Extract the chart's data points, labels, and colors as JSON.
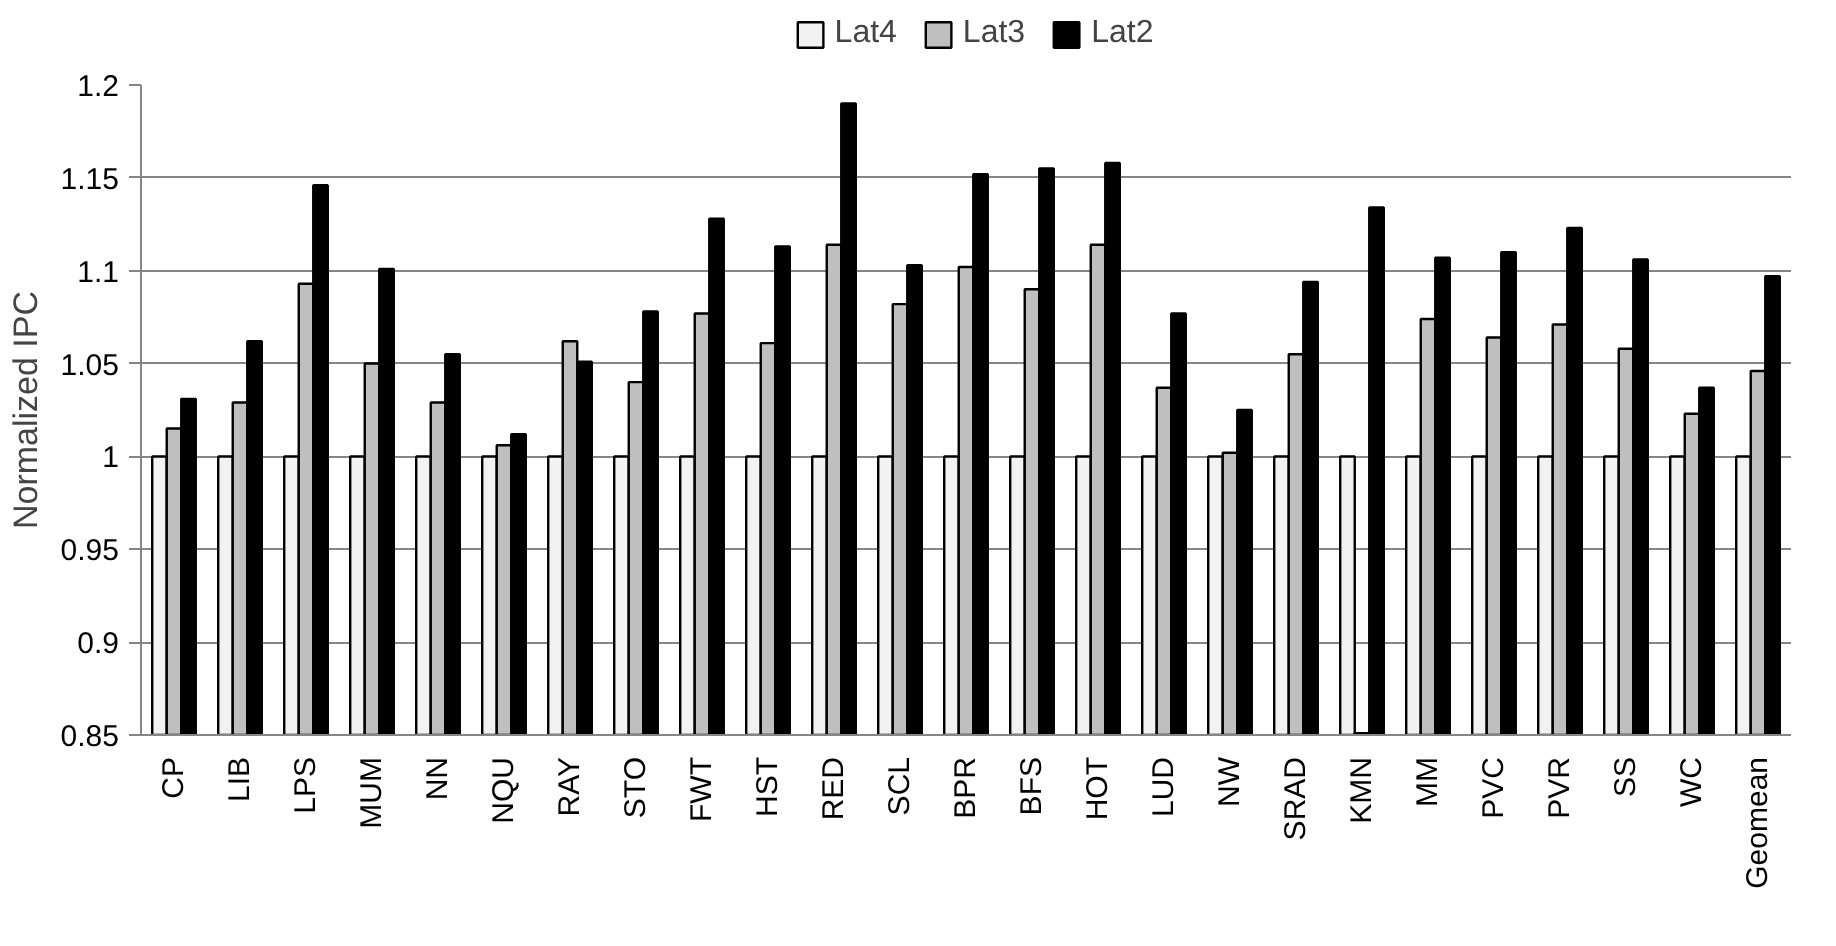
{
  "chart_data": {
    "type": "bar",
    "ylabel": "Normalized IPC",
    "categories": [
      "CP",
      "LIB",
      "LPS",
      "MUM",
      "NN",
      "NQU",
      "RAY",
      "STO",
      "FWT",
      "HST",
      "RED",
      "SCL",
      "BPR",
      "BFS",
      "HOT",
      "LUD",
      "NW",
      "SRAD",
      "KMN",
      "MM",
      "PVC",
      "PVR",
      "SS",
      "WC",
      "Geomean"
    ],
    "series": [
      {
        "name": "Lat4",
        "color": "#f2f2f2",
        "values": [
          1,
          1,
          1,
          1,
          1,
          1,
          1,
          1,
          1,
          1,
          1,
          1,
          1,
          1,
          1,
          1,
          1,
          1,
          1,
          1,
          1,
          1,
          1,
          1,
          1
        ]
      },
      {
        "name": "Lat3",
        "color": "#bfbfbf",
        "values": [
          1.015,
          1.029,
          1.093,
          1.05,
          1.029,
          1.006,
          1.062,
          1.04,
          1.077,
          1.061,
          1.114,
          1.082,
          1.102,
          1.09,
          1.114,
          1.037,
          1.002,
          1.055,
          0.851,
          1.074,
          1.064,
          1.071,
          1.058,
          1.023,
          1.046
        ]
      },
      {
        "name": "Lat2",
        "color": "#000000",
        "values": [
          1.031,
          1.062,
          1.146,
          1.101,
          1.055,
          1.012,
          1.051,
          1.078,
          1.128,
          1.113,
          1.19,
          1.103,
          1.152,
          1.155,
          1.158,
          1.077,
          1.025,
          1.094,
          1.134,
          1.107,
          1.11,
          1.123,
          1.106,
          1.037,
          1.097
        ]
      }
    ],
    "ylim": [
      0.85,
      1.2
    ],
    "yticks": [
      0.85,
      0.9,
      0.95,
      1,
      1.05,
      1.1,
      1.15,
      1.2
    ],
    "grid": "y",
    "legend": "top"
  }
}
